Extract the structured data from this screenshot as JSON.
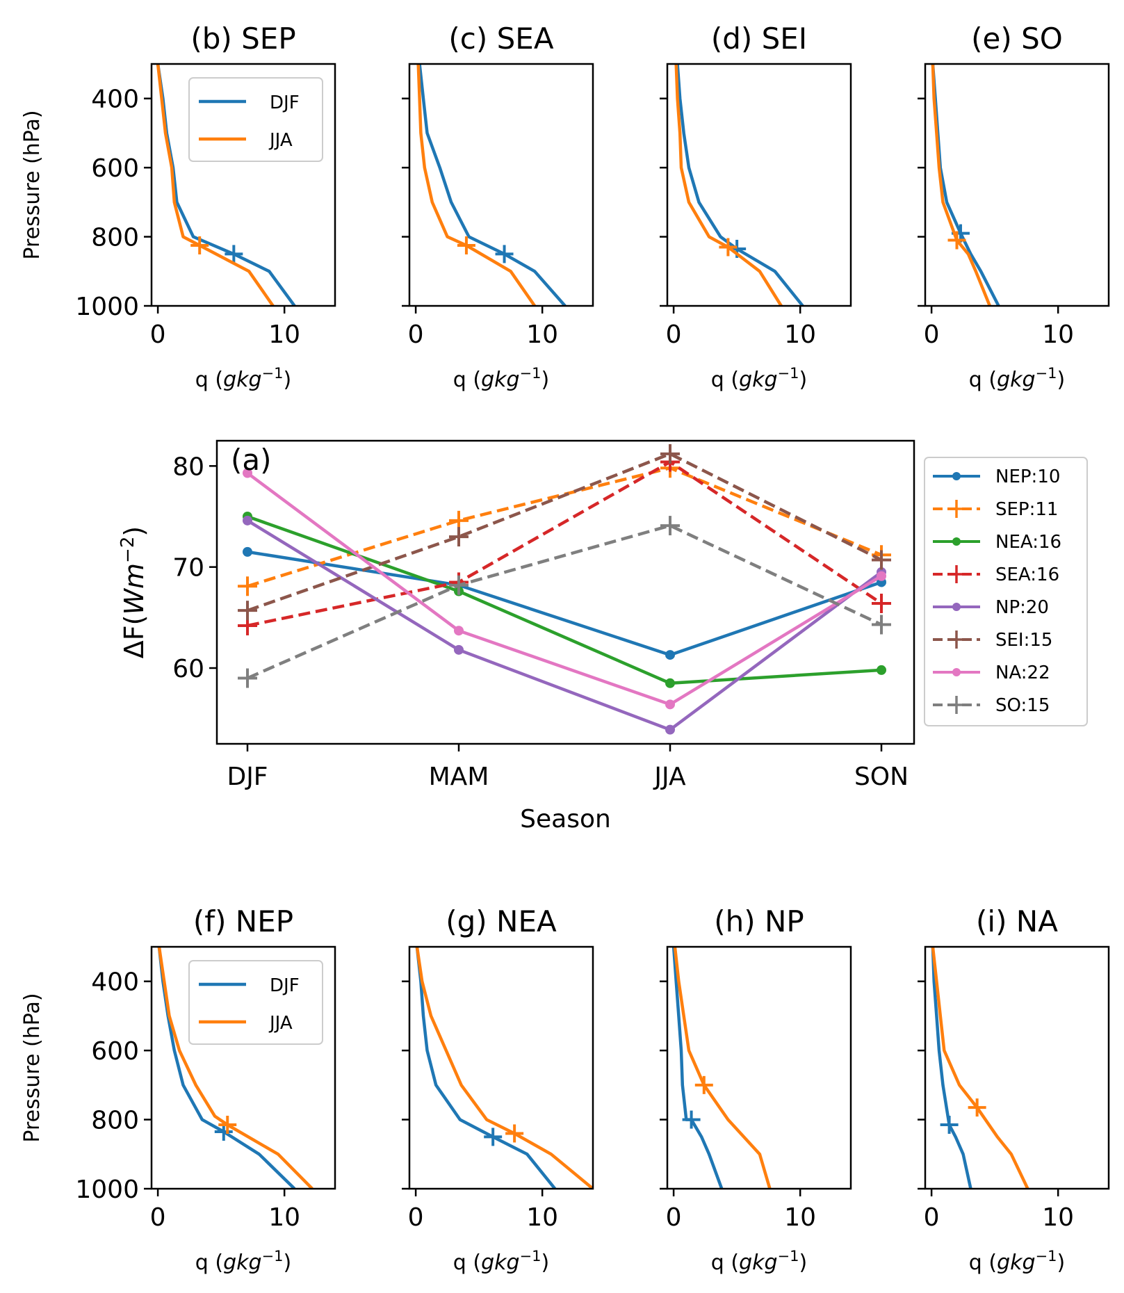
{
  "profile_axes": {
    "xlabel": "q ($gkg^{-1}$)",
    "ylabel": "Pressure (hPa)",
    "xticks": [
      0,
      10
    ],
    "yticks": [
      400,
      600,
      800,
      1000
    ],
    "xlim": [
      -0.5,
      14
    ],
    "ylim": [
      1000,
      300
    ]
  },
  "series_colors": {
    "DJF": "#1f77b4",
    "JJA": "#ff7f0e"
  },
  "chart_data": [
    {
      "type": "line",
      "panel": "(a)",
      "title": "(a)",
      "xlabel": "Season",
      "ylabel": "ΔF(Wm⁻²)",
      "categories": [
        "DJF",
        "MAM",
        "JJA",
        "SON"
      ],
      "yticks": [
        60,
        70,
        80
      ],
      "ylim": [
        52.5,
        82.5
      ],
      "legend_position": "outside-right",
      "series": [
        {
          "name": "NEP:10",
          "color": "#1f77b4",
          "marker": "dot",
          "dashed": false,
          "values": [
            71.5,
            68.2,
            61.3,
            68.5
          ]
        },
        {
          "name": "SEP:11",
          "color": "#ff7f0e",
          "marker": "plus",
          "dashed": true,
          "values": [
            68.1,
            74.6,
            79.8,
            71.2
          ]
        },
        {
          "name": "NEA:16",
          "color": "#2ca02c",
          "marker": "dot",
          "dashed": false,
          "values": [
            75.0,
            67.6,
            58.5,
            59.8
          ]
        },
        {
          "name": "SEA:16",
          "color": "#d62728",
          "marker": "plus",
          "dashed": true,
          "values": [
            64.2,
            68.5,
            80.4,
            66.4
          ]
        },
        {
          "name": "NP:20",
          "color": "#9467bd",
          "marker": "dot",
          "dashed": false,
          "values": [
            74.6,
            61.8,
            53.9,
            69.5
          ]
        },
        {
          "name": "SEI:15",
          "color": "#8c564b",
          "marker": "plus",
          "dashed": true,
          "values": [
            65.7,
            73.0,
            81.2,
            70.7
          ]
        },
        {
          "name": "NA:22",
          "color": "#e377c2",
          "marker": "dot",
          "dashed": false,
          "values": [
            79.3,
            63.7,
            56.4,
            69.1
          ]
        },
        {
          "name": "SO:15",
          "color": "#7f7f7f",
          "marker": "plus",
          "dashed": true,
          "values": [
            59.0,
            68.2,
            74.1,
            64.3
          ]
        }
      ]
    },
    {
      "type": "line",
      "panel": "(b)",
      "title": "(b)  SEP",
      "legend": true,
      "series": [
        {
          "name": "DJF",
          "points": [
            [
              0.0,
              300
            ],
            [
              0.4,
              400
            ],
            [
              0.7,
              500
            ],
            [
              1.2,
              600
            ],
            [
              1.5,
              700
            ],
            [
              2.8,
              800
            ],
            [
              6.0,
              850
            ],
            [
              8.8,
              900
            ],
            [
              10.8,
              1000
            ]
          ],
          "marker": [
            6.0,
            850
          ]
        },
        {
          "name": "JJA",
          "points": [
            [
              0.0,
              300
            ],
            [
              0.3,
              400
            ],
            [
              0.6,
              500
            ],
            [
              1.1,
              600
            ],
            [
              1.3,
              700
            ],
            [
              2.0,
              800
            ],
            [
              3.3,
              825
            ],
            [
              7.2,
              900
            ],
            [
              9.1,
              1000
            ]
          ],
          "marker": [
            3.3,
            825
          ]
        }
      ]
    },
    {
      "type": "line",
      "panel": "(c)",
      "title": "(c)  SEA",
      "legend": false,
      "series": [
        {
          "name": "DJF",
          "points": [
            [
              0.3,
              300
            ],
            [
              0.6,
              400
            ],
            [
              0.9,
              500
            ],
            [
              1.9,
              600
            ],
            [
              2.8,
              700
            ],
            [
              4.2,
              800
            ],
            [
              7.0,
              850
            ],
            [
              9.4,
              900
            ],
            [
              11.8,
              1000
            ]
          ],
          "marker": [
            7.0,
            850
          ]
        },
        {
          "name": "JJA",
          "points": [
            [
              0.2,
              300
            ],
            [
              0.3,
              400
            ],
            [
              0.4,
              500
            ],
            [
              0.7,
              600
            ],
            [
              1.3,
              700
            ],
            [
              2.5,
              800
            ],
            [
              4.0,
              825
            ],
            [
              7.5,
              900
            ],
            [
              9.4,
              1000
            ]
          ],
          "marker": [
            4.0,
            825
          ]
        }
      ]
    },
    {
      "type": "line",
      "panel": "(d)",
      "title": "(d)  SEI",
      "legend": false,
      "series": [
        {
          "name": "DJF",
          "points": [
            [
              0.3,
              300
            ],
            [
              0.5,
              400
            ],
            [
              0.8,
              500
            ],
            [
              1.2,
              600
            ],
            [
              2.0,
              700
            ],
            [
              3.7,
              800
            ],
            [
              5.0,
              835
            ],
            [
              8.0,
              900
            ],
            [
              10.2,
              1000
            ]
          ],
          "marker": [
            5.0,
            835
          ]
        },
        {
          "name": "JJA",
          "points": [
            [
              0.2,
              300
            ],
            [
              0.3,
              400
            ],
            [
              0.5,
              500
            ],
            [
              0.6,
              600
            ],
            [
              1.2,
              700
            ],
            [
              2.8,
              800
            ],
            [
              4.3,
              830
            ],
            [
              6.8,
              900
            ],
            [
              8.5,
              1000
            ]
          ],
          "marker": [
            4.3,
            830
          ]
        }
      ]
    },
    {
      "type": "line",
      "panel": "(e)",
      "title": "(e)  SO",
      "legend": false,
      "series": [
        {
          "name": "DJF",
          "points": [
            [
              0.1,
              300
            ],
            [
              0.3,
              400
            ],
            [
              0.5,
              500
            ],
            [
              0.7,
              600
            ],
            [
              1.2,
              700
            ],
            [
              2.3,
              790
            ],
            [
              3.1,
              850
            ],
            [
              3.9,
              900
            ],
            [
              5.3,
              1000
            ]
          ],
          "marker": [
            2.3,
            790
          ]
        },
        {
          "name": "JJA",
          "points": [
            [
              0.1,
              300
            ],
            [
              0.2,
              400
            ],
            [
              0.4,
              500
            ],
            [
              0.6,
              600
            ],
            [
              0.9,
              700
            ],
            [
              2.0,
              810
            ],
            [
              2.9,
              850
            ],
            [
              3.5,
              900
            ],
            [
              4.6,
              1000
            ]
          ],
          "marker": [
            2.0,
            810
          ]
        }
      ]
    },
    {
      "type": "line",
      "panel": "(f)",
      "title": "(f)  NEP",
      "legend": true,
      "series": [
        {
          "name": "DJF",
          "points": [
            [
              0.1,
              300
            ],
            [
              0.4,
              400
            ],
            [
              0.8,
              500
            ],
            [
              1.3,
              600
            ],
            [
              2.0,
              700
            ],
            [
              3.5,
              800
            ],
            [
              5.2,
              835
            ],
            [
              8.0,
              900
            ],
            [
              10.8,
              1000
            ]
          ],
          "marker": [
            5.2,
            835
          ]
        },
        {
          "name": "JJA",
          "points": [
            [
              0.1,
              300
            ],
            [
              0.5,
              400
            ],
            [
              0.9,
              500
            ],
            [
              1.7,
              600
            ],
            [
              3.0,
              700
            ],
            [
              4.5,
              790
            ],
            [
              5.5,
              815
            ],
            [
              9.5,
              900
            ],
            [
              12.2,
              1000
            ]
          ],
          "marker": [
            5.5,
            815
          ]
        }
      ]
    },
    {
      "type": "line",
      "panel": "(g)",
      "title": "(g)  NEA",
      "legend": false,
      "series": [
        {
          "name": "DJF",
          "points": [
            [
              0.1,
              300
            ],
            [
              0.4,
              400
            ],
            [
              0.6,
              500
            ],
            [
              0.9,
              600
            ],
            [
              1.6,
              700
            ],
            [
              3.5,
              800
            ],
            [
              6.1,
              850
            ],
            [
              8.8,
              900
            ],
            [
              11.0,
              1000
            ]
          ],
          "marker": [
            6.1,
            850
          ]
        },
        {
          "name": "JJA",
          "points": [
            [
              0.1,
              300
            ],
            [
              0.5,
              400
            ],
            [
              1.2,
              500
            ],
            [
              2.4,
              600
            ],
            [
              3.6,
              700
            ],
            [
              5.6,
              800
            ],
            [
              7.8,
              840
            ],
            [
              10.7,
              900
            ],
            [
              14.0,
              1000
            ]
          ],
          "marker": [
            7.8,
            840
          ]
        }
      ]
    },
    {
      "type": "line",
      "panel": "(h)",
      "title": "(h)  NP",
      "legend": false,
      "series": [
        {
          "name": "DJF",
          "points": [
            [
              0.0,
              300
            ],
            [
              0.2,
              400
            ],
            [
              0.4,
              500
            ],
            [
              0.6,
              600
            ],
            [
              0.7,
              700
            ],
            [
              1.0,
              800
            ],
            [
              1.4,
              800
            ],
            [
              2.2,
              850
            ],
            [
              2.8,
              900
            ],
            [
              3.8,
              1000
            ]
          ],
          "marker": [
            1.4,
            800
          ]
        },
        {
          "name": "JJA",
          "points": [
            [
              0.1,
              300
            ],
            [
              0.4,
              400
            ],
            [
              0.8,
              500
            ],
            [
              1.2,
              600
            ],
            [
              2.4,
              700
            ],
            [
              4.3,
              800
            ],
            [
              6.8,
              900
            ],
            [
              7.6,
              1000
            ]
          ],
          "marker": [
            2.4,
            700
          ]
        }
      ]
    },
    {
      "type": "line",
      "panel": "(i)",
      "title": "(i)  NA",
      "legend": false,
      "series": [
        {
          "name": "DJF",
          "points": [
            [
              0.1,
              300
            ],
            [
              0.2,
              400
            ],
            [
              0.4,
              500
            ],
            [
              0.6,
              600
            ],
            [
              0.9,
              700
            ],
            [
              1.4,
              815
            ],
            [
              1.9,
              850
            ],
            [
              2.5,
              900
            ],
            [
              3.1,
              1000
            ]
          ],
          "marker": [
            1.4,
            815
          ]
        },
        {
          "name": "JJA",
          "points": [
            [
              0.1,
              300
            ],
            [
              0.4,
              400
            ],
            [
              0.7,
              500
            ],
            [
              1.0,
              600
            ],
            [
              2.2,
              700
            ],
            [
              3.6,
              765
            ],
            [
              5.2,
              850
            ],
            [
              6.3,
              900
            ],
            [
              7.6,
              1000
            ]
          ],
          "marker": [
            3.6,
            765
          ]
        }
      ]
    }
  ]
}
